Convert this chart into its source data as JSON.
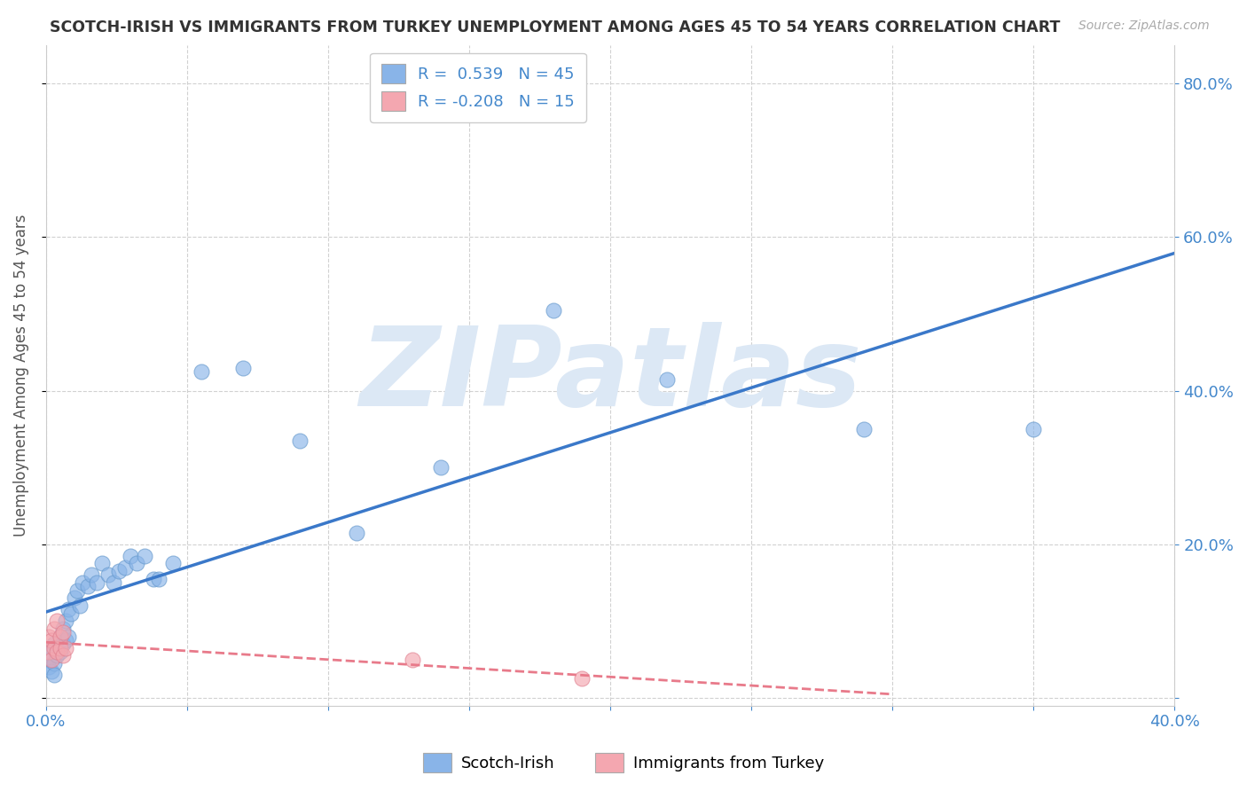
{
  "title": "SCOTCH-IRISH VS IMMIGRANTS FROM TURKEY UNEMPLOYMENT AMONG AGES 45 TO 54 YEARS CORRELATION CHART",
  "source": "Source: ZipAtlas.com",
  "ylabel": "Unemployment Among Ages 45 to 54 years",
  "xlim": [
    0.0,
    0.4
  ],
  "ylim": [
    -0.01,
    0.85
  ],
  "grid_color": "#cccccc",
  "background_color": "#ffffff",
  "blue_color": "#89b4e8",
  "pink_color": "#f4a7b0",
  "blue_edge_color": "#6699cc",
  "pink_edge_color": "#e08090",
  "blue_line_color": "#3a78c9",
  "pink_line_color": "#e87a8a",
  "watermark": "ZIPatlas",
  "watermark_color": "#dce8f5",
  "legend_R1": "R =  0.539",
  "legend_N1": "N = 45",
  "legend_R2": "R = -0.208",
  "legend_N2": "N = 15",
  "legend_label1": "Scotch-Irish",
  "legend_label2": "Immigrants from Turkey",
  "tick_color": "#4488cc",
  "axis_label_color": "#555555",
  "scotch_irish_x": [
    0.001,
    0.001,
    0.002,
    0.002,
    0.003,
    0.003,
    0.003,
    0.004,
    0.004,
    0.005,
    0.005,
    0.006,
    0.006,
    0.007,
    0.007,
    0.008,
    0.008,
    0.009,
    0.01,
    0.011,
    0.012,
    0.013,
    0.015,
    0.016,
    0.018,
    0.02,
    0.022,
    0.024,
    0.026,
    0.028,
    0.03,
    0.032,
    0.035,
    0.038,
    0.04,
    0.045,
    0.055,
    0.07,
    0.09,
    0.11,
    0.14,
    0.18,
    0.22,
    0.29,
    0.35
  ],
  "scotch_irish_y": [
    0.05,
    0.04,
    0.06,
    0.035,
    0.07,
    0.045,
    0.03,
    0.055,
    0.065,
    0.08,
    0.06,
    0.09,
    0.07,
    0.1,
    0.075,
    0.115,
    0.08,
    0.11,
    0.13,
    0.14,
    0.12,
    0.15,
    0.145,
    0.16,
    0.15,
    0.175,
    0.16,
    0.15,
    0.165,
    0.17,
    0.185,
    0.175,
    0.185,
    0.155,
    0.155,
    0.175,
    0.425,
    0.43,
    0.335,
    0.215,
    0.3,
    0.505,
    0.415,
    0.35,
    0.35
  ],
  "turkey_x": [
    0.001,
    0.001,
    0.002,
    0.002,
    0.003,
    0.003,
    0.004,
    0.004,
    0.005,
    0.005,
    0.006,
    0.006,
    0.007,
    0.13,
    0.19
  ],
  "turkey_y": [
    0.06,
    0.08,
    0.05,
    0.075,
    0.065,
    0.09,
    0.06,
    0.1,
    0.065,
    0.08,
    0.055,
    0.085,
    0.065,
    0.05,
    0.025
  ],
  "blue_line_x_start": 0.0,
  "blue_line_x_end": 0.4,
  "pink_line_x_start": 0.0,
  "pink_line_x_end": 0.3,
  "right_yticks": [
    0.0,
    0.2,
    0.4,
    0.6,
    0.8
  ],
  "right_ytick_labels": [
    "",
    "20.0%",
    "40.0%",
    "60.0%",
    "80.0%"
  ]
}
